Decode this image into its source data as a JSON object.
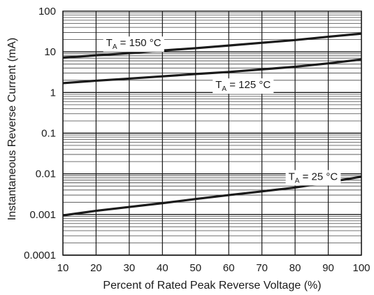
{
  "chart_data": {
    "type": "line",
    "title": "",
    "xlabel": "Percent of Rated Peak Reverse Voltage (%)",
    "ylabel": "Instantaneous Reverse Current (mA)",
    "xlim": [
      10,
      100
    ],
    "ylim": [
      0.0001,
      100
    ],
    "yscale": "log",
    "grid": true,
    "x_ticks": [
      "10",
      "20",
      "30",
      "40",
      "50",
      "60",
      "70",
      "80",
      "90",
      "100"
    ],
    "y_ticks": [
      "100",
      "10",
      "1",
      "0.1",
      "0.01",
      "0.001",
      "0.0001"
    ],
    "series": [
      {
        "name": "T_A = 150 °C",
        "label_main": "T",
        "label_sub": "A",
        "label_rest": " = 150 °C",
        "label_at_x": 23,
        "x": [
          10,
          20,
          30,
          40,
          50,
          60,
          70,
          80,
          90,
          100
        ],
        "y": [
          7.2,
          8.2,
          9.3,
          10.8,
          12.3,
          14.3,
          16.7,
          19.5,
          23.5,
          28
        ]
      },
      {
        "name": "T_A = 125 °C",
        "label_main": "T",
        "label_sub": "A",
        "label_rest": " = 125 °C",
        "label_at_x": 56,
        "x": [
          10,
          20,
          30,
          40,
          50,
          60,
          70,
          80,
          90,
          100
        ],
        "y": [
          1.7,
          1.95,
          2.2,
          2.5,
          2.85,
          3.2,
          3.7,
          4.3,
          5.2,
          6.5
        ]
      },
      {
        "name": "T_A = 25 °C",
        "label_main": "T",
        "label_sub": "A",
        "label_rest": " = 25 °C",
        "label_at_x": 78,
        "x": [
          10,
          20,
          30,
          40,
          50,
          60,
          70,
          80,
          90,
          100
        ],
        "y": [
          0.00095,
          0.00123,
          0.00153,
          0.0019,
          0.0024,
          0.003,
          0.0037,
          0.0046,
          0.0062,
          0.0085
        ]
      }
    ]
  },
  "colors": {
    "line": "#1a1a1a",
    "grid_major": "#1a1a1a",
    "grid_minor": "#444444",
    "background": "#ffffff"
  }
}
